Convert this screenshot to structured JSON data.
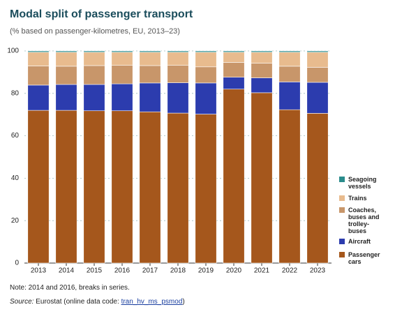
{
  "chart_data": {
    "type": "stacked-bar",
    "title": "Modal split of passenger transport",
    "subtitle": "(% based on passenger-kilometres, EU, 2013–23)",
    "categories": [
      "2013",
      "2014",
      "2015",
      "2016",
      "2017",
      "2018",
      "2019",
      "2020",
      "2021",
      "2022",
      "2023"
    ],
    "series": [
      {
        "name": "Passenger cars",
        "color": "#a5571c",
        "values": [
          72.0,
          72.0,
          71.8,
          71.8,
          71.3,
          70.7,
          70.2,
          82.0,
          80.3,
          72.3,
          70.6
        ]
      },
      {
        "name": "Aircraft",
        "color": "#2c3cae",
        "values": [
          11.9,
          12.2,
          12.4,
          12.7,
          13.6,
          14.3,
          14.7,
          5.6,
          7.0,
          13.1,
          14.6
        ]
      },
      {
        "name": "Coaches, buses and trolley-buses",
        "color": "#c8966a",
        "values": [
          9.0,
          8.6,
          8.9,
          8.7,
          8.2,
          8.2,
          7.6,
          7.0,
          6.9,
          7.4,
          7.1
        ]
      },
      {
        "name": "Trains",
        "color": "#e8bb8e",
        "values": [
          6.5,
          6.6,
          6.3,
          6.2,
          6.3,
          6.2,
          6.9,
          4.8,
          5.2,
          6.6,
          7.1
        ]
      },
      {
        "name": "Seagoing vessels",
        "color": "#2a8c8c",
        "values": [
          0.6,
          0.6,
          0.6,
          0.6,
          0.6,
          0.6,
          0.6,
          0.6,
          0.6,
          0.6,
          0.6
        ]
      }
    ],
    "ylim": [
      0,
      100
    ],
    "yticks": [
      0,
      20,
      40,
      60,
      80,
      100
    ],
    "grid": true,
    "note": "Note: 2014 and 2016, breaks in series.",
    "source": {
      "label": "Source:",
      "text": "Eurostat (online data code:",
      "code": "tran_hv_ms_psmod",
      "suffix": ")"
    }
  }
}
